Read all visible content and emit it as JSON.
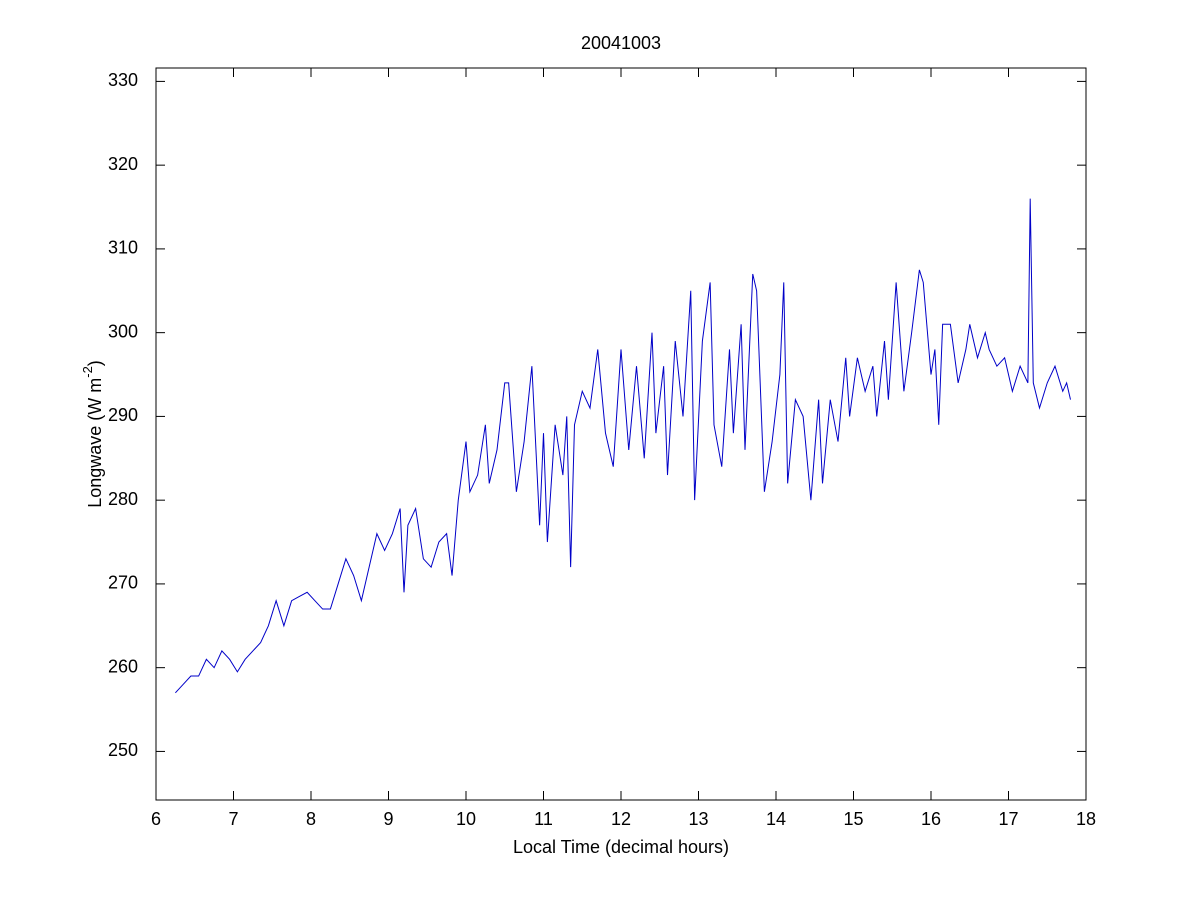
{
  "chart_data": {
    "type": "line",
    "title": "20041003",
    "xlabel": "Local Time (decimal hours)",
    "ylabel": {
      "text": "Longwave (W m",
      "superscript": "-2",
      "suffix": ")"
    },
    "xlim": [
      6,
      18
    ],
    "xticks": [
      6,
      7,
      8,
      9,
      10,
      11,
      12,
      13,
      14,
      15,
      16,
      17,
      18
    ],
    "ylim": [
      244.2,
      331.6
    ],
    "yticks": [
      250,
      260,
      270,
      280,
      290,
      300,
      310,
      320,
      330
    ],
    "series": [
      {
        "color": "#0000c8",
        "x": [
          6.25,
          6.35,
          6.45,
          6.55,
          6.65,
          6.75,
          6.85,
          6.95,
          7.05,
          7.15,
          7.25,
          7.35,
          7.45,
          7.55,
          7.65,
          7.75,
          7.85,
          7.95,
          8.05,
          8.15,
          8.25,
          8.35,
          8.45,
          8.55,
          8.65,
          8.75,
          8.85,
          8.95,
          9.05,
          9.15,
          9.2,
          9.25,
          9.35,
          9.45,
          9.55,
          9.65,
          9.75,
          9.82,
          9.9,
          10.0,
          10.05,
          10.15,
          10.25,
          10.3,
          10.4,
          10.5,
          10.55,
          10.65,
          10.75,
          10.85,
          10.95,
          11.0,
          11.05,
          11.15,
          11.25,
          11.3,
          11.35,
          11.4,
          11.5,
          11.6,
          11.7,
          11.8,
          11.9,
          12.0,
          12.1,
          12.2,
          12.3,
          12.4,
          12.45,
          12.55,
          12.6,
          12.7,
          12.8,
          12.9,
          12.95,
          13.05,
          13.15,
          13.2,
          13.3,
          13.4,
          13.45,
          13.55,
          13.6,
          13.7,
          13.75,
          13.85,
          13.95,
          14.05,
          14.1,
          14.15,
          14.25,
          14.35,
          14.45,
          14.55,
          14.6,
          14.7,
          14.8,
          14.9,
          14.95,
          15.05,
          15.15,
          15.25,
          15.3,
          15.4,
          15.45,
          15.55,
          15.65,
          15.75,
          15.85,
          15.9,
          16.0,
          16.05,
          16.1,
          16.15,
          16.25,
          16.35,
          16.45,
          16.5,
          16.6,
          16.7,
          16.75,
          16.85,
          16.95,
          17.05,
          17.15,
          17.25,
          17.28,
          17.32,
          17.4,
          17.5,
          17.6,
          17.7,
          17.75,
          17.8
        ],
        "values": [
          257,
          258,
          259,
          259,
          261,
          260,
          262,
          261,
          259.5,
          261,
          262,
          263,
          265,
          268,
          265,
          268,
          268.5,
          269,
          268,
          267,
          267,
          270,
          273,
          271,
          268,
          272,
          276,
          274,
          276,
          279,
          269,
          277,
          279,
          273,
          272,
          275,
          276,
          271,
          280,
          287,
          281,
          283,
          289,
          282,
          286,
          294,
          294,
          281,
          287,
          296,
          277,
          288,
          275,
          289,
          283,
          290,
          272,
          289,
          293,
          291,
          298,
          288,
          284,
          298,
          286,
          296,
          285,
          300,
          288,
          296,
          283,
          299,
          290,
          305,
          280,
          299,
          306,
          289,
          284,
          298,
          288,
          301,
          286,
          307,
          305,
          281,
          287,
          295,
          306,
          282,
          292,
          290,
          280,
          292,
          282,
          292,
          287,
          297,
          290,
          297,
          293,
          296,
          290,
          299,
          292,
          306,
          293,
          300,
          307.5,
          306,
          295,
          298,
          289,
          301,
          301,
          294,
          298,
          301,
          297,
          300,
          298,
          296,
          297,
          293,
          296,
          294,
          316,
          294,
          291,
          294,
          296,
          293,
          294,
          292
        ]
      }
    ]
  }
}
